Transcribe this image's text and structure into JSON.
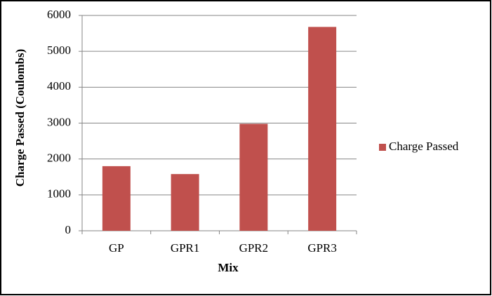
{
  "chart_data": {
    "type": "bar",
    "x_label": "Mix",
    "y_label": "Charge Passed (Coulombs)",
    "categories": [
      "GP",
      "GPR1",
      "GPR2",
      "GPR3"
    ],
    "series": [
      {
        "name": "Charge Passed",
        "color": "#c0504d",
        "values": [
          1800,
          1580,
          2980,
          5680
        ]
      }
    ],
    "ylim": [
      0,
      6000
    ],
    "yticks": [
      0,
      1000,
      2000,
      3000,
      4000,
      5000,
      6000
    ],
    "grid": true,
    "legend": "right"
  }
}
